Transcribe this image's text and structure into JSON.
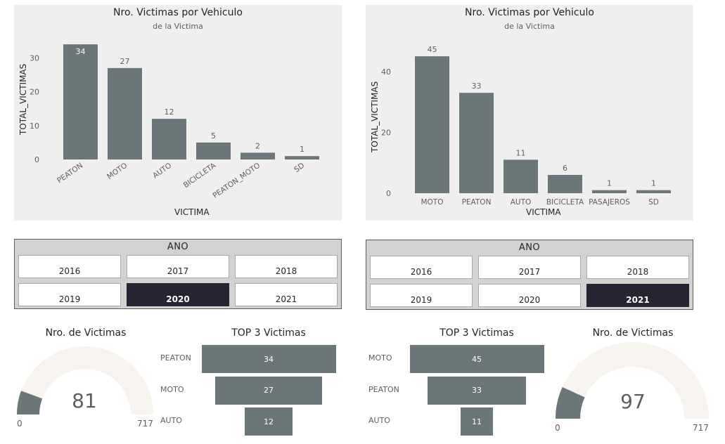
{
  "colors": {
    "bar": "#6a7677",
    "card": "#efefef",
    "gauge_track": "#f7f3ee",
    "selected": "#252433"
  },
  "charts": {
    "left": {
      "title": "Nro. Victimas por Vehiculo",
      "subtitle": "de la Victima",
      "ylabel": "TOTAL_VICTIMAS",
      "xlabel": "VICTIMA",
      "yticks": [
        "0",
        "10",
        "20",
        "30"
      ]
    },
    "right": {
      "title": "Nro. Victimas por Vehiculo",
      "subtitle": "de la Victima",
      "ylabel": "TOTAL_VICTIMAS",
      "xlabel": "VICTIMA",
      "yticks": [
        "0",
        "20",
        "40"
      ]
    }
  },
  "chart_data": [
    {
      "type": "bar",
      "title": "Nro. Victimas por Vehiculo",
      "subtitle": "de la Victima",
      "xlabel": "VICTIMA",
      "ylabel": "TOTAL_VICTIMAS",
      "categories": [
        "PEATON",
        "MOTO",
        "AUTO",
        "BICICLETA",
        "PEATON_MOTO",
        "SD"
      ],
      "values": [
        34,
        27,
        12,
        5,
        2,
        1
      ],
      "ylim": [
        0,
        34
      ]
    },
    {
      "type": "bar",
      "title": "Nro. Victimas por Vehiculo",
      "subtitle": "de la Victima",
      "xlabel": "VICTIMA",
      "ylabel": "TOTAL_VICTIMAS",
      "categories": [
        "MOTO",
        "PEATON",
        "AUTO",
        "BICICLETA",
        "PASAJEROS",
        "SD"
      ],
      "values": [
        45,
        33,
        11,
        6,
        1,
        1
      ],
      "ylim": [
        0,
        45
      ]
    }
  ],
  "slicers": {
    "left": {
      "title": "ANO",
      "years": [
        "2016",
        "2017",
        "2018",
        "2019",
        "2020",
        "2021"
      ],
      "selected": "2020"
    },
    "right": {
      "title": "ANO",
      "years": [
        "2016",
        "2017",
        "2018",
        "2019",
        "2020",
        "2021"
      ],
      "selected": "2021"
    }
  },
  "gauges": {
    "left": {
      "title": "Nro. de Victimas",
      "value": 81,
      "value_text": "81",
      "min": "0",
      "max": "717",
      "min_value": 0,
      "max_value": 717
    },
    "right": {
      "title": "Nro. de Victimas",
      "value": 97,
      "value_text": "97",
      "min": "0",
      "max": "717",
      "min_value": 0,
      "max_value": 717
    }
  },
  "funnels": {
    "left": {
      "title": "TOP 3 Victimas",
      "items": [
        {
          "label": "PEATON",
          "value": 34,
          "text": "34"
        },
        {
          "label": "MOTO",
          "value": 27,
          "text": "27"
        },
        {
          "label": "AUTO",
          "value": 12,
          "text": "12"
        }
      ]
    },
    "right": {
      "title": "TOP 3 Victimas",
      "items": [
        {
          "label": "MOTO",
          "value": 45,
          "text": "45"
        },
        {
          "label": "PEATON",
          "value": 33,
          "text": "33"
        },
        {
          "label": "AUTO",
          "value": 11,
          "text": "11"
        }
      ]
    }
  }
}
